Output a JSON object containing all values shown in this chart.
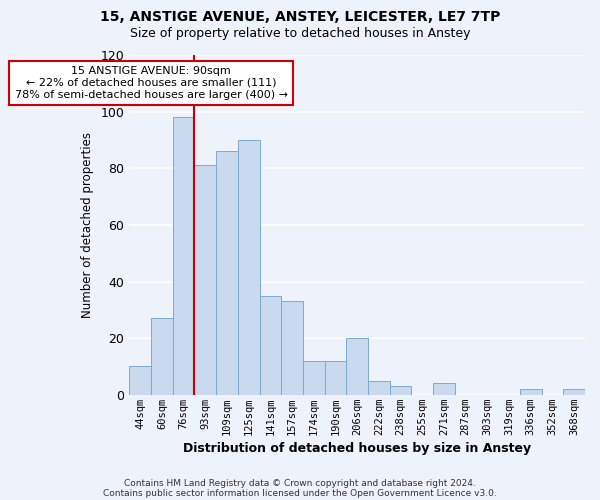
{
  "title": "15, ANSTIGE AVENUE, ANSTEY, LEICESTER, LE7 7TP",
  "subtitle": "Size of property relative to detached houses in Anstey",
  "xlabel": "Distribution of detached houses by size in Anstey",
  "ylabel": "Number of detached properties",
  "bar_labels": [
    "44sqm",
    "60sqm",
    "76sqm",
    "93sqm",
    "109sqm",
    "125sqm",
    "141sqm",
    "157sqm",
    "174sqm",
    "190sqm",
    "206sqm",
    "222sqm",
    "238sqm",
    "255sqm",
    "271sqm",
    "287sqm",
    "303sqm",
    "319sqm",
    "336sqm",
    "352sqm",
    "368sqm"
  ],
  "bar_values": [
    10,
    27,
    98,
    81,
    86,
    90,
    35,
    33,
    12,
    12,
    20,
    5,
    3,
    0,
    4,
    0,
    0,
    0,
    2,
    0,
    2
  ],
  "bar_color": "#c9d9ee",
  "bar_edge_color": "#7aaad4",
  "background_color": "#eef2fb",
  "grid_color": "#ffffff",
  "vline_color": "#cc0000",
  "vline_x_index": 3,
  "annotation_title": "15 ANSTIGE AVENUE: 90sqm",
  "annotation_line1": "← 22% of detached houses are smaller (111)",
  "annotation_line2": "78% of semi-detached houses are larger (400) →",
  "annotation_box_color": "white",
  "annotation_box_edge": "#cc0000",
  "ylim": [
    0,
    120
  ],
  "yticks": [
    0,
    20,
    40,
    60,
    80,
    100,
    120
  ],
  "footer1": "Contains HM Land Registry data © Crown copyright and database right 2024.",
  "footer2": "Contains public sector information licensed under the Open Government Licence v3.0."
}
